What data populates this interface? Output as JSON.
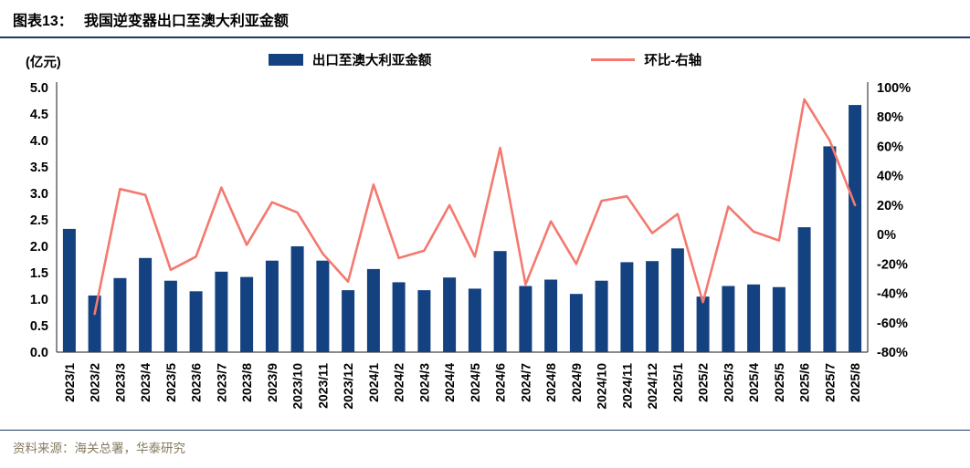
{
  "header": {
    "figure_label": "图表13：",
    "title": "我国逆变器出口至澳大利亚金额"
  },
  "footer": {
    "source": "资料来源：海关总署，华泰研究"
  },
  "colors": {
    "bar": "#14417F",
    "line": "#F4796F",
    "rule": "#1F3864",
    "footer_text": "#857A5F"
  },
  "chart_data": {
    "type": "bar+line",
    "title": "我国逆变器出口至澳大利亚金额",
    "legend_position": "top",
    "grid": false,
    "categories": [
      "2023/1",
      "2023/2",
      "2023/3",
      "2023/4",
      "2023/5",
      "2023/6",
      "2023/7",
      "2023/8",
      "2023/9",
      "2023/10",
      "2023/11",
      "2023/12",
      "2024/1",
      "2024/2",
      "2024/3",
      "2024/4",
      "2024/5",
      "2024/6",
      "2024/7",
      "2024/8",
      "2024/9",
      "2024/10",
      "2024/11",
      "2024/12",
      "2025/1",
      "2025/2",
      "2025/3",
      "2025/4",
      "2025/5",
      "2025/6",
      "2025/7",
      "2025/8"
    ],
    "series": [
      {
        "name": "出口至澳大利亚金额",
        "type": "bar",
        "axis": "left",
        "color": "#14417F",
        "values": [
          2.33,
          1.07,
          1.4,
          1.78,
          1.35,
          1.15,
          1.52,
          1.42,
          1.73,
          2.0,
          1.73,
          1.17,
          1.57,
          1.32,
          1.17,
          1.41,
          1.2,
          1.91,
          1.25,
          1.37,
          1.1,
          1.35,
          1.7,
          1.72,
          1.96,
          1.05,
          1.25,
          1.28,
          1.23,
          2.36,
          3.89,
          4.67
        ]
      },
      {
        "name": "环比-右轴",
        "type": "line",
        "axis": "right",
        "color": "#F4796F",
        "values": [
          null,
          -54,
          31,
          27,
          -24,
          -15,
          32,
          -7,
          22,
          15,
          -13,
          -32,
          34,
          -16,
          -11,
          20,
          -15,
          59,
          -34,
          9,
          -20,
          23,
          26,
          1,
          14,
          -46,
          19,
          2,
          -4,
          92,
          64,
          20
        ]
      }
    ],
    "left_axis": {
      "label": "(亿元)",
      "min": 0,
      "max": 5,
      "step": 0.5
    },
    "right_axis": {
      "label": "环比",
      "min": -80,
      "max": 100,
      "step": 20,
      "suffix": "%"
    }
  }
}
